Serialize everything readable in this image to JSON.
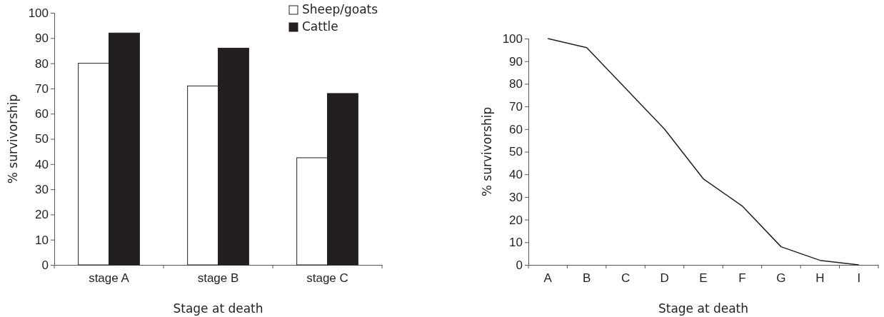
{
  "chart_data": [
    {
      "type": "bar",
      "xlabel": "Stage at death",
      "ylabel": "% survivorship",
      "categories": [
        "stage A",
        "stage B",
        "stage C"
      ],
      "ylim": [
        0,
        100
      ],
      "yticks": [
        0,
        10,
        20,
        30,
        40,
        50,
        60,
        70,
        80,
        90,
        100
      ],
      "legend": "top right",
      "grid": false,
      "series": [
        {
          "name": "Sheep/goats",
          "color": "#ffffff",
          "values": [
            80,
            71,
            42.5
          ]
        },
        {
          "name": "Cattle",
          "color": "#231f20",
          "values": [
            92,
            86,
            68
          ]
        }
      ]
    },
    {
      "type": "line",
      "xlabel": "Stage at death",
      "ylabel": "% survivorship",
      "categories": [
        "A",
        "B",
        "C",
        "D",
        "E",
        "F",
        "G",
        "H",
        "I"
      ],
      "ylim": [
        0,
        100
      ],
      "yticks": [
        0,
        10,
        20,
        30,
        40,
        50,
        60,
        70,
        80,
        90,
        100
      ],
      "grid": false,
      "marker": "none",
      "line_style": "solid",
      "series": [
        {
          "color": "#231f20",
          "values": [
            100,
            96,
            78,
            60,
            38,
            26,
            8,
            2,
            0
          ]
        }
      ]
    }
  ]
}
